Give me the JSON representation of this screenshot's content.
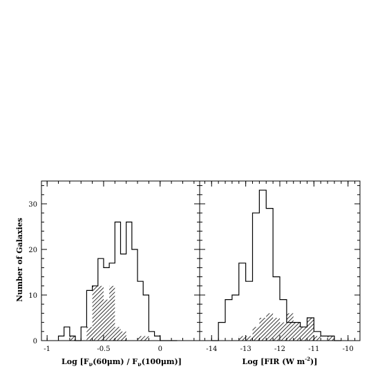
{
  "figure": {
    "ylabel": "Number of Galaxies"
  },
  "chart_data": [
    {
      "type": "bar",
      "subtype": "histogram",
      "xlabel_pre": "Log [F",
      "xlabel_nu1": "ν",
      "xlabel_mid": "(60μm) / F",
      "xlabel_nu2": "ν",
      "xlabel_post": "(100μm)]",
      "xlim": [
        -1.05,
        0.35
      ],
      "ylim": [
        0,
        35
      ],
      "xticks": [
        {
          "value": -1,
          "label": "-1"
        },
        {
          "value": -0.5,
          "label": "-0.5"
        },
        {
          "value": 0,
          "label": "0"
        }
      ],
      "yticks": [
        {
          "value": 0,
          "label": "0"
        },
        {
          "value": 10,
          "label": "10"
        },
        {
          "value": 20,
          "label": "20"
        },
        {
          "value": 30,
          "label": "30"
        }
      ],
      "bin_edges": [
        -0.9,
        -0.85,
        -0.8,
        -0.75,
        -0.7,
        -0.65,
        -0.6,
        -0.55,
        -0.5,
        -0.45,
        -0.4,
        -0.35,
        -0.3,
        -0.25,
        -0.2,
        -0.15,
        -0.1,
        -0.05,
        0,
        0.05,
        0.1,
        0.15
      ],
      "series": [
        {
          "role": "all",
          "style": "outline",
          "values": [
            1,
            3,
            1,
            0,
            3,
            11,
            12,
            18,
            16,
            17,
            26,
            19,
            26,
            20,
            13,
            10,
            2,
            1,
            0,
            0,
            0
          ]
        },
        {
          "role": "subset",
          "style": "hatched",
          "values": [
            0,
            0,
            1,
            0,
            0,
            3,
            12,
            12,
            9,
            12,
            3,
            2,
            0,
            0,
            1,
            1,
            0,
            0,
            0,
            0,
            0
          ]
        }
      ]
    },
    {
      "type": "bar",
      "subtype": "histogram",
      "xlabel_pre": "Log [FIR (W m",
      "xlabel_sup": "-2",
      "xlabel_post": ")]",
      "xlim": [
        -14.35,
        -9.65
      ],
      "ylim": [
        0,
        35
      ],
      "xticks": [
        {
          "value": -14,
          "label": "-14"
        },
        {
          "value": -13,
          "label": "-13"
        },
        {
          "value": -12,
          "label": "-12"
        },
        {
          "value": -11,
          "label": "-11"
        },
        {
          "value": -10,
          "label": "-10"
        }
      ],
      "yticks": [
        {
          "value": 0,
          "label": "0"
        },
        {
          "value": 10,
          "label": "10"
        },
        {
          "value": 20,
          "label": "20"
        },
        {
          "value": 30,
          "label": "30"
        }
      ],
      "bin_edges": [
        -14.0,
        -13.8,
        -13.6,
        -13.4,
        -13.2,
        -13.0,
        -12.8,
        -12.6,
        -12.4,
        -12.2,
        -12.0,
        -11.8,
        -11.6,
        -11.4,
        -11.2,
        -11.0,
        -10.8,
        -10.6,
        -10.4,
        -10.2
      ],
      "series": [
        {
          "role": "all",
          "style": "outline",
          "values": [
            0,
            4,
            9,
            10,
            17,
            13,
            28,
            33,
            29,
            14,
            9,
            4,
            4,
            3,
            5,
            2,
            1,
            1,
            0
          ]
        },
        {
          "role": "subset",
          "style": "hatched",
          "values": [
            0,
            0,
            0,
            0,
            1,
            1,
            3,
            5,
            6,
            5,
            4,
            6,
            4,
            3,
            5,
            1,
            0,
            1,
            0
          ]
        }
      ]
    }
  ]
}
